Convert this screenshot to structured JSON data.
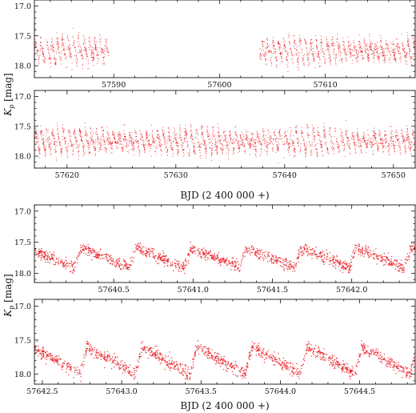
{
  "chart_data": [
    {
      "type": "scatter",
      "panel": "a-top",
      "xlim": [
        57582.5,
        57618.5
      ],
      "ylim": [
        18.2,
        16.9
      ],
      "xticks": [
        57590,
        57600,
        57610
      ],
      "yticks": [
        17.0,
        17.5,
        18.0
      ],
      "xtick_labels": [
        "57590",
        "57600",
        "57610"
      ],
      "ytick_labels": [
        "17.0",
        "17.5",
        "18.0"
      ],
      "xlabel": "",
      "ylabel": "",
      "series": [
        {
          "color": "#e8141b",
          "segments": [
            [
              57582.5,
              57589.5
            ],
            [
              57603.8,
              57618.5
            ]
          ],
          "period": 0.51,
          "mean_mag": 17.75,
          "amplitude": 0.45
        }
      ],
      "grid": false
    },
    {
      "type": "scatter",
      "panel": "a-bottom",
      "xlim": [
        57617.0,
        57652.0
      ],
      "ylim": [
        18.2,
        16.9
      ],
      "xticks": [
        57620,
        57630,
        57640,
        57650
      ],
      "yticks": [
        17.0,
        17.5,
        18.0
      ],
      "xtick_labels": [
        "57620",
        "57630",
        "57640",
        "57650"
      ],
      "ytick_labels": [
        "17.0",
        "17.5",
        "18.0"
      ],
      "xlabel": "BJD (2 400 000 +)",
      "ylabel": "",
      "series": [
        {
          "color": "#e8141b",
          "segments": [
            [
              57617.0,
              57652.0
            ]
          ],
          "period": 0.51,
          "mean_mag": 17.75,
          "amplitude": 0.45
        }
      ],
      "grid": false
    },
    {
      "type": "scatter",
      "panel": "b-top",
      "xlim": [
        57640.0,
        57642.4
      ],
      "ylim": [
        18.15,
        16.9
      ],
      "xticks": [
        57640.5,
        57641.0,
        57641.5,
        57642.0
      ],
      "yticks": [
        17.0,
        17.5,
        18.0
      ],
      "xtick_labels": [
        "57640.5",
        "57641.0",
        "57641.5",
        "57642.0"
      ],
      "ytick_labels": [
        "17.0",
        "17.5",
        "18.0"
      ],
      "xlabel": "",
      "ylabel": "",
      "series": [
        {
          "color": "#e8141b",
          "segments": [
            [
              57640.0,
              57642.4
            ]
          ],
          "period": 0.3465,
          "phase_zero": 57640.6,
          "mean_mag": 17.75,
          "amplitude": 0.32
        }
      ],
      "grid": false
    },
    {
      "type": "scatter",
      "panel": "b-bottom",
      "xlim": [
        57642.45,
        57644.85
      ],
      "ylim": [
        18.15,
        16.9
      ],
      "xticks": [
        57642.5,
        57643.0,
        57643.5,
        57644.0,
        57644.5
      ],
      "yticks": [
        17.0,
        17.5,
        18.0
      ],
      "xtick_labels": [
        "57642.5",
        "57643.0",
        "57643.5",
        "57644.0",
        "57644.5"
      ],
      "ytick_labels": [
        "17.0",
        "17.5",
        "18.0"
      ],
      "xlabel": "BJD (2 400 000 +)",
      "ylabel": "",
      "series": [
        {
          "color": "#e8141b",
          "segments": [
            [
              57642.45,
              57644.85
            ]
          ],
          "period": 0.3465,
          "phase_zero": 57642.74,
          "mean_mag": 17.8,
          "amplitude": 0.4
        }
      ],
      "grid": false
    }
  ],
  "ylabels": [
    {
      "main": "K",
      "sub": "p",
      "unit": " [mag]"
    },
    {
      "main": "K",
      "sub": "p",
      "unit": " [mag]"
    }
  ]
}
